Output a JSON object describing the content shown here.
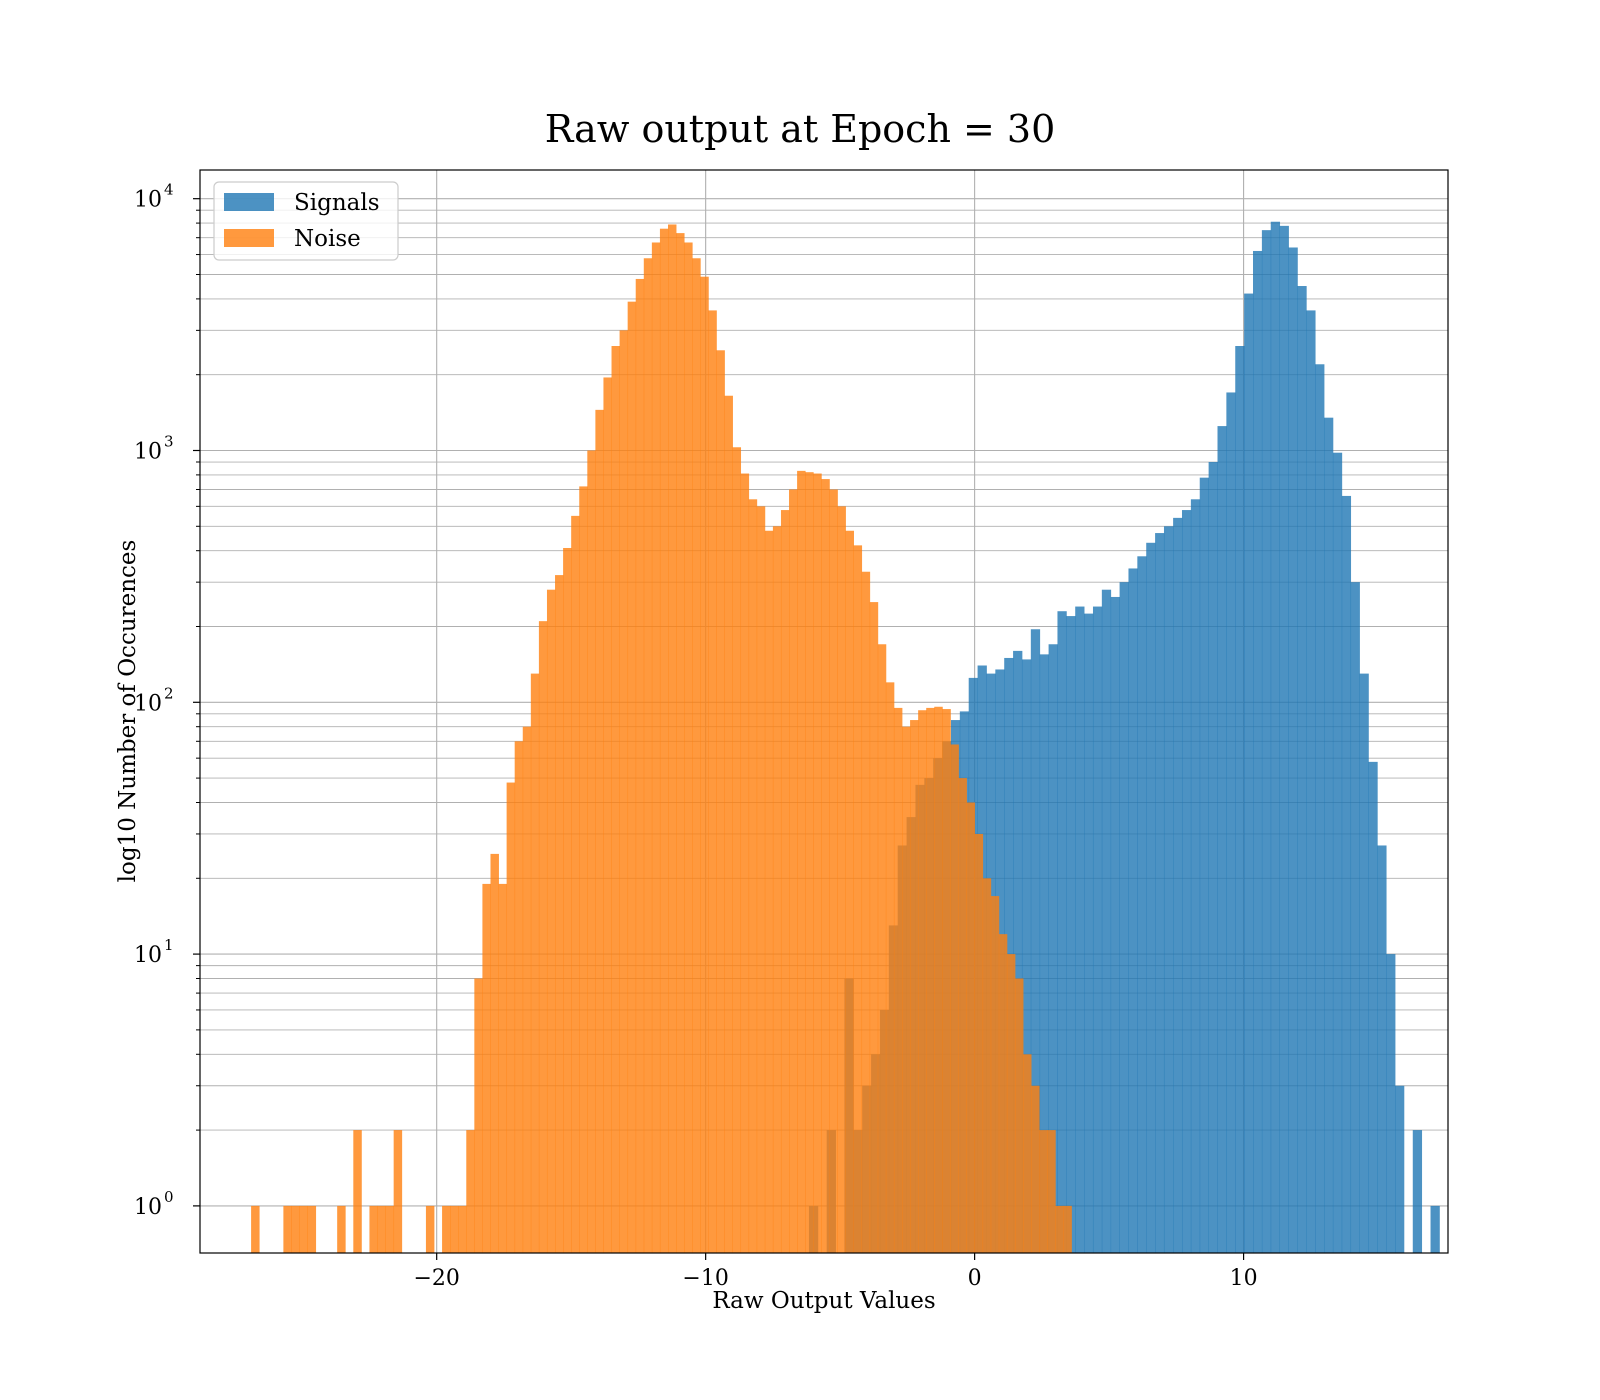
{
  "chart_data": {
    "type": "histogram",
    "title": "Raw output at Epoch = 30",
    "xlabel": "Raw Output Values",
    "ylabel": "log10 Number of Occurences",
    "xlim": [
      -28.8,
      17.6
    ],
    "ylim": [
      0.65,
      13000
    ],
    "yscale": "log",
    "grid": true,
    "legend_position": "top-left",
    "x_ticks": [
      {
        "value": -20,
        "label": "−20"
      },
      {
        "value": -10,
        "label": "−10"
      },
      {
        "value": 0,
        "label": "0"
      },
      {
        "value": 10,
        "label": "10"
      }
    ],
    "y_ticks": [
      {
        "value": 1,
        "label": "10",
        "exp": "0"
      },
      {
        "value": 10,
        "label": "10",
        "exp": "1"
      },
      {
        "value": 100,
        "label": "10",
        "exp": "2"
      },
      {
        "value": 1000,
        "label": "10",
        "exp": "3"
      },
      {
        "value": 10000,
        "label": "10",
        "exp": "4"
      }
    ],
    "series": [
      {
        "name": "Signals",
        "color": "#1f77b4",
        "opacity": 0.8,
        "bins": [
          [
            -6.16,
            -5.83,
            1
          ],
          [
            -5.5,
            -5.17,
            2
          ],
          [
            -4.84,
            -4.51,
            8
          ],
          [
            -4.51,
            -4.18,
            2
          ],
          [
            -4.18,
            -3.85,
            3
          ],
          [
            -3.85,
            -3.52,
            4
          ],
          [
            -3.52,
            -3.19,
            6
          ],
          [
            -3.19,
            -2.86,
            13
          ],
          [
            -2.86,
            -2.53,
            27
          ],
          [
            -2.53,
            -2.2,
            35
          ],
          [
            -2.2,
            -1.87,
            47
          ],
          [
            -1.87,
            -1.54,
            50
          ],
          [
            -1.54,
            -1.21,
            60
          ],
          [
            -1.21,
            -0.88,
            70
          ],
          [
            -0.88,
            -0.55,
            85
          ],
          [
            -0.55,
            -0.22,
            92
          ],
          [
            -0.22,
            0.11,
            125
          ],
          [
            0.11,
            0.44,
            140
          ],
          [
            0.44,
            0.77,
            130
          ],
          [
            0.77,
            1.1,
            135
          ],
          [
            1.1,
            1.43,
            150
          ],
          [
            1.43,
            1.76,
            160
          ],
          [
            1.76,
            2.09,
            148
          ],
          [
            2.09,
            2.42,
            195
          ],
          [
            2.42,
            2.75,
            155
          ],
          [
            2.75,
            3.08,
            170
          ],
          [
            3.08,
            3.41,
            230
          ],
          [
            3.41,
            3.74,
            220
          ],
          [
            3.74,
            4.07,
            240
          ],
          [
            4.07,
            4.4,
            225
          ],
          [
            4.4,
            4.73,
            240
          ],
          [
            4.73,
            5.06,
            280
          ],
          [
            5.06,
            5.39,
            262
          ],
          [
            5.39,
            5.72,
            300
          ],
          [
            5.72,
            6.05,
            340
          ],
          [
            6.05,
            6.38,
            380
          ],
          [
            6.38,
            6.71,
            430
          ],
          [
            6.71,
            7.04,
            470
          ],
          [
            7.04,
            7.38,
            500
          ],
          [
            7.38,
            7.71,
            540
          ],
          [
            7.71,
            8.04,
            580
          ],
          [
            8.04,
            8.37,
            640
          ],
          [
            8.37,
            8.7,
            780
          ],
          [
            8.7,
            9.03,
            900
          ],
          [
            9.03,
            9.36,
            1250
          ],
          [
            9.36,
            9.69,
            1700
          ],
          [
            9.69,
            10.02,
            2600
          ],
          [
            10.02,
            10.35,
            4200
          ],
          [
            10.35,
            10.68,
            6200
          ],
          [
            10.68,
            11.01,
            7500
          ],
          [
            11.01,
            11.34,
            8100
          ],
          [
            11.34,
            11.67,
            7800
          ],
          [
            11.67,
            12.0,
            6400
          ],
          [
            12.0,
            12.33,
            4500
          ],
          [
            12.33,
            12.66,
            3600
          ],
          [
            12.66,
            12.99,
            2200
          ],
          [
            12.99,
            13.32,
            1350
          ],
          [
            13.32,
            13.65,
            980
          ],
          [
            13.65,
            13.98,
            660
          ],
          [
            13.98,
            14.31,
            300
          ],
          [
            14.31,
            14.64,
            130
          ],
          [
            14.64,
            14.97,
            58
          ],
          [
            14.97,
            15.3,
            27
          ],
          [
            15.3,
            15.63,
            10
          ],
          [
            15.63,
            15.96,
            3
          ],
          [
            16.29,
            16.62,
            2
          ],
          [
            16.95,
            17.28,
            1
          ]
        ]
      },
      {
        "name": "Noise",
        "color": "#ff7f0e",
        "opacity": 0.8,
        "bins": [
          [
            -26.9,
            -26.6,
            1
          ],
          [
            -25.7,
            -25.4,
            1
          ],
          [
            -25.4,
            -25.1,
            1
          ],
          [
            -25.1,
            -24.8,
            1
          ],
          [
            -24.8,
            -24.5,
            1
          ],
          [
            -23.7,
            -23.4,
            1
          ],
          [
            -23.1,
            -22.8,
            2
          ],
          [
            -22.5,
            -22.2,
            1
          ],
          [
            -22.2,
            -21.9,
            1
          ],
          [
            -21.9,
            -21.6,
            1
          ],
          [
            -21.6,
            -21.3,
            2
          ],
          [
            -20.4,
            -20.1,
            1
          ],
          [
            -19.8,
            -19.5,
            1
          ],
          [
            -19.5,
            -19.2,
            1
          ],
          [
            -19.2,
            -18.9,
            1
          ],
          [
            -18.9,
            -18.6,
            2
          ],
          [
            -18.6,
            -18.3,
            8
          ],
          [
            -18.3,
            -18.0,
            19
          ],
          [
            -18.0,
            -17.7,
            25
          ],
          [
            -17.7,
            -17.4,
            19
          ],
          [
            -17.4,
            -17.1,
            48
          ],
          [
            -17.1,
            -16.8,
            70
          ],
          [
            -16.8,
            -16.5,
            80
          ],
          [
            -16.5,
            -16.2,
            130
          ],
          [
            -16.2,
            -15.9,
            210
          ],
          [
            -15.9,
            -15.6,
            280
          ],
          [
            -15.6,
            -15.3,
            320
          ],
          [
            -15.3,
            -15.0,
            410
          ],
          [
            -15.0,
            -14.7,
            550
          ],
          [
            -14.7,
            -14.4,
            720
          ],
          [
            -14.4,
            -14.1,
            1000
          ],
          [
            -14.1,
            -13.8,
            1450
          ],
          [
            -13.8,
            -13.5,
            1950
          ],
          [
            -13.5,
            -13.2,
            2600
          ],
          [
            -13.2,
            -12.9,
            3000
          ],
          [
            -12.9,
            -12.6,
            3900
          ],
          [
            -12.6,
            -12.3,
            4800
          ],
          [
            -12.3,
            -12.0,
            5800
          ],
          [
            -12.0,
            -11.7,
            6700
          ],
          [
            -11.7,
            -11.4,
            7600
          ],
          [
            -11.4,
            -11.1,
            7900
          ],
          [
            -11.1,
            -10.8,
            7300
          ],
          [
            -10.8,
            -10.5,
            6700
          ],
          [
            -10.5,
            -10.2,
            5800
          ],
          [
            -10.2,
            -9.9,
            4900
          ],
          [
            -9.9,
            -9.6,
            3600
          ],
          [
            -9.6,
            -9.3,
            2500
          ],
          [
            -9.3,
            -9.0,
            1650
          ],
          [
            -9.0,
            -8.7,
            1030
          ],
          [
            -8.7,
            -8.4,
            810
          ],
          [
            -8.4,
            -8.1,
            640
          ],
          [
            -8.1,
            -7.8,
            600
          ],
          [
            -7.8,
            -7.5,
            480
          ],
          [
            -7.5,
            -7.2,
            500
          ],
          [
            -7.2,
            -6.9,
            580
          ],
          [
            -6.9,
            -6.6,
            700
          ],
          [
            -6.6,
            -6.3,
            830
          ],
          [
            -6.3,
            -6.0,
            820
          ],
          [
            -6.0,
            -5.7,
            810
          ],
          [
            -5.7,
            -5.4,
            770
          ],
          [
            -5.4,
            -5.1,
            700
          ],
          [
            -5.1,
            -4.8,
            600
          ],
          [
            -4.8,
            -4.5,
            480
          ],
          [
            -4.5,
            -4.2,
            420
          ],
          [
            -4.2,
            -3.9,
            330
          ],
          [
            -3.9,
            -3.6,
            250
          ],
          [
            -3.6,
            -3.3,
            170
          ],
          [
            -3.3,
            -3.0,
            120
          ],
          [
            -3.0,
            -2.7,
            95
          ],
          [
            -2.7,
            -2.4,
            80
          ],
          [
            -2.4,
            -2.1,
            85
          ],
          [
            -2.1,
            -1.8,
            93
          ],
          [
            -1.8,
            -1.5,
            95
          ],
          [
            -1.5,
            -1.2,
            96
          ],
          [
            -1.2,
            -0.9,
            94
          ],
          [
            -0.9,
            -0.6,
            68
          ],
          [
            -0.6,
            -0.3,
            50
          ],
          [
            -0.3,
            0.0,
            40
          ],
          [
            0.0,
            0.3,
            30
          ],
          [
            0.3,
            0.6,
            20
          ],
          [
            0.6,
            0.9,
            17
          ],
          [
            0.9,
            1.2,
            12
          ],
          [
            1.2,
            1.5,
            10
          ],
          [
            1.5,
            1.8,
            8
          ],
          [
            1.8,
            2.1,
            4
          ],
          [
            2.1,
            2.4,
            3
          ],
          [
            2.4,
            2.7,
            2
          ],
          [
            2.7,
            3.0,
            2
          ],
          [
            3.0,
            3.3,
            1
          ],
          [
            3.3,
            3.6,
            1
          ]
        ]
      }
    ]
  }
}
